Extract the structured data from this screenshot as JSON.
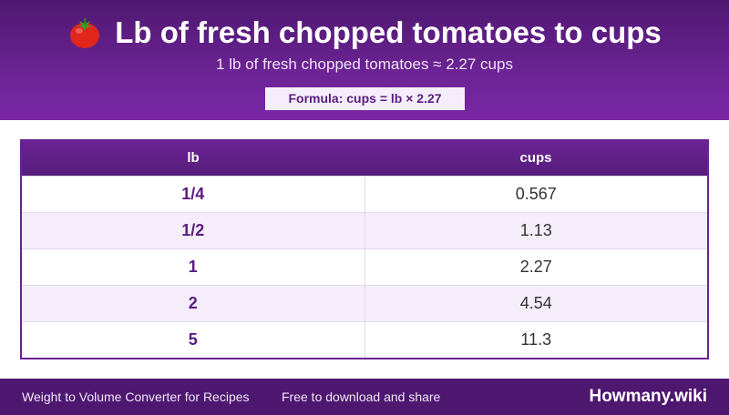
{
  "header": {
    "icon": "tomato-icon",
    "title": "Lb of fresh chopped tomatoes to cups",
    "subtitle": "1 lb of fresh chopped tomatoes ≈ 2.27 cups",
    "formula": "Formula: cups = lb × 2.27"
  },
  "table": {
    "columns": [
      "lb",
      "cups"
    ],
    "rows": [
      {
        "lb": "1/4",
        "cups": "0.567"
      },
      {
        "lb": "1/2",
        "cups": "1.13"
      },
      {
        "lb": "1",
        "cups": "2.27"
      },
      {
        "lb": "2",
        "cups": "4.54"
      },
      {
        "lb": "5",
        "cups": "11.3"
      }
    ]
  },
  "footer": {
    "left": "Weight to Volume Converter for Recipes",
    "middle": "Free to download and share",
    "brand": "Howmany.wiki"
  },
  "colors": {
    "primary": "#6c2394",
    "dark": "#4e1870",
    "row_alt": "#f5eefa"
  }
}
